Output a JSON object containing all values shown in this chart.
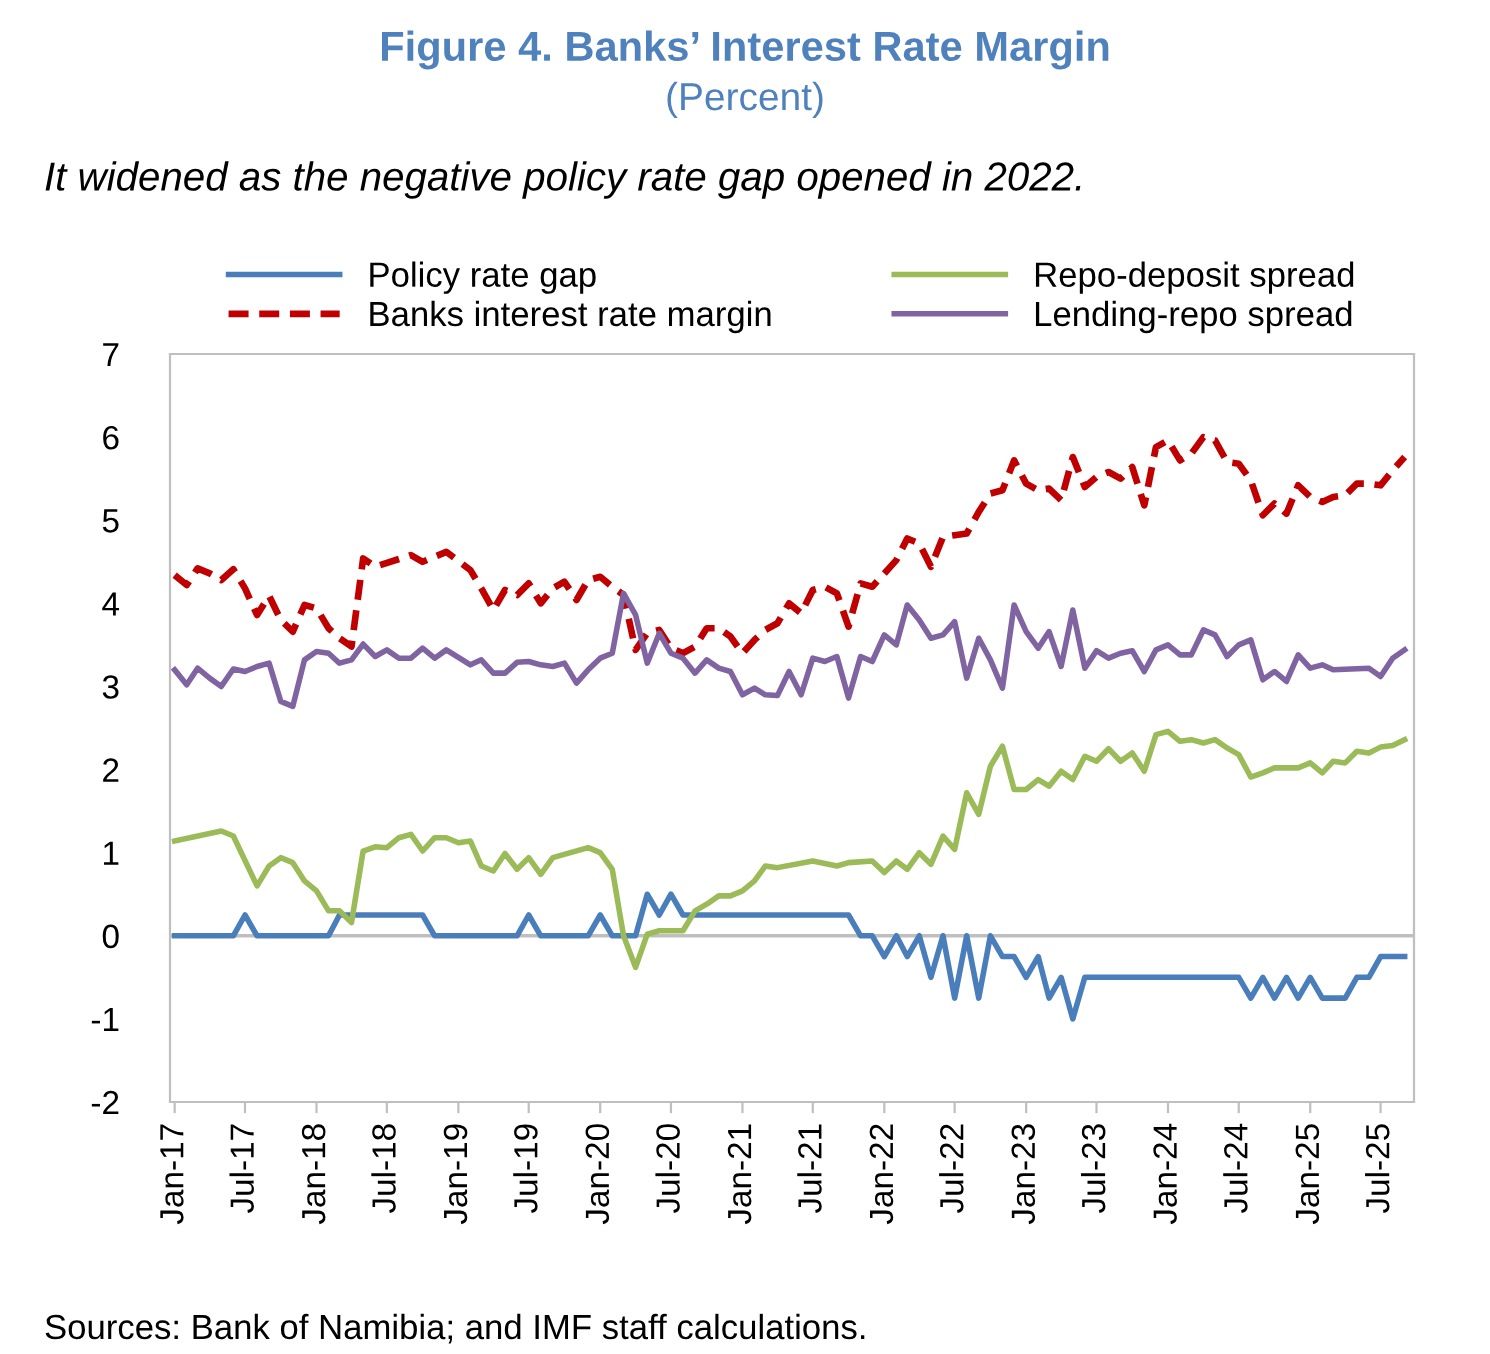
{
  "chart_data": {
    "type": "line",
    "title": "Figure 4. Banks’ Interest Rate Margin",
    "subtitle": "(Percent)",
    "annotations": [
      "It widened as the negative policy rate gap opened in 2022.",
      "Sources: Bank of Namibia; and IMF staff calculations."
    ],
    "series": [
      {
        "name": "Policy rate gap",
        "color": "#4a7ebb",
        "line_style": "solid",
        "x": [
          "2017-01",
          "2017-06",
          "2017-07",
          "2017-08",
          "2018-02",
          "2018-03",
          "2018-10",
          "2018-11",
          "2019-06",
          "2019-07",
          "2019-08",
          "2019-12",
          "2020-01",
          "2020-02",
          "2020-04",
          "2020-05",
          "2020-06",
          "2020-07",
          "2020-08",
          "2021-10",
          "2021-11",
          "2021-12",
          "2022-01",
          "2022-02",
          "2022-03",
          "2022-04",
          "2022-05",
          "2022-06",
          "2022-07",
          "2022-08",
          "2022-09",
          "2022-10",
          "2022-11",
          "2022-12",
          "2023-01",
          "2023-02",
          "2023-03",
          "2023-04",
          "2023-05",
          "2023-06",
          "2024-07",
          "2024-08",
          "2024-09",
          "2024-10",
          "2024-11",
          "2024-12",
          "2025-01",
          "2025-02",
          "2025-04",
          "2025-05",
          "2025-06",
          "2025-07",
          "2025-09"
        ],
        "values": [
          0,
          0,
          0.25,
          0,
          0,
          0.25,
          0.25,
          0,
          0,
          0.25,
          0,
          0,
          0.25,
          0,
          0,
          0.5,
          0.25,
          0.5,
          0.25,
          0.25,
          0,
          0,
          -0.25,
          0,
          -0.25,
          0,
          -0.5,
          0,
          -0.75,
          0,
          -0.75,
          0,
          -0.25,
          -0.25,
          -0.5,
          -0.25,
          -0.75,
          -0.5,
          -1,
          -0.5,
          -0.5,
          -0.75,
          -0.5,
          -0.75,
          -0.5,
          -0.75,
          -0.5,
          -0.75,
          -0.75,
          -0.5,
          -0.5,
          -0.25,
          -0.25
        ]
      },
      {
        "name": "Banks interest rate margin",
        "color": "#c00000",
        "line_style": "dashed",
        "x": [
          "2017-01",
          "2017-02",
          "2017-03",
          "2017-04",
          "2017-05",
          "2017-06",
          "2017-07",
          "2017-08",
          "2017-09",
          "2017-10",
          "2017-11",
          "2017-12",
          "2018-01",
          "2018-02",
          "2018-03",
          "2018-04",
          "2018-05",
          "2018-06",
          "2018-09",
          "2018-10",
          "2018-12",
          "2019-02",
          "2019-03",
          "2019-04",
          "2019-05",
          "2019-06",
          "2019-07",
          "2019-08",
          "2019-09",
          "2019-10",
          "2019-11",
          "2019-12",
          "2020-01",
          "2020-02",
          "2020-03",
          "2020-04",
          "2020-05",
          "2020-06",
          "2020-07",
          "2020-08",
          "2020-09",
          "2020-10",
          "2020-11",
          "2020-12",
          "2021-01",
          "2021-02",
          "2021-03",
          "2021-04",
          "2021-05",
          "2021-06",
          "2021-07",
          "2021-08",
          "2021-09",
          "2021-10",
          "2021-11",
          "2021-12",
          "2022-01",
          "2022-02",
          "2022-03",
          "2022-04",
          "2022-05",
          "2022-06",
          "2022-07",
          "2022-08",
          "2022-09",
          "2022-10",
          "2022-11",
          "2022-12",
          "2023-01",
          "2023-02",
          "2023-03",
          "2023-04",
          "2023-05",
          "2023-06",
          "2023-07",
          "2023-08",
          "2023-09",
          "2023-10",
          "2023-11",
          "2023-12",
          "2024-01",
          "2024-02",
          "2024-03",
          "2024-04",
          "2024-05",
          "2024-06",
          "2024-07",
          "2024-08",
          "2024-09",
          "2024-10",
          "2024-11",
          "2024-12",
          "2025-01",
          "2025-02",
          "2025-03",
          "2025-04",
          "2025-05",
          "2025-06",
          "2025-07",
          "2025-08",
          "2025-09"
        ],
        "values": [
          4.34,
          4.22,
          4.42,
          4.36,
          4.28,
          4.41,
          4.18,
          3.86,
          4.09,
          3.8,
          3.66,
          3.98,
          3.94,
          3.7,
          3.58,
          3.48,
          4.54,
          4.44,
          4.58,
          4.5,
          4.62,
          4.4,
          4.18,
          3.92,
          4.16,
          4.1,
          4.24,
          4.0,
          4.18,
          4.26,
          4.04,
          4.28,
          4.32,
          4.2,
          4.1,
          3.44,
          3.64,
          3.68,
          3.46,
          3.4,
          3.48,
          3.7,
          3.7,
          3.6,
          3.4,
          3.56,
          3.68,
          3.76,
          4.0,
          3.88,
          4.16,
          4.2,
          4.12,
          3.72,
          4.24,
          4.2,
          4.36,
          4.52,
          4.78,
          4.72,
          4.44,
          4.8,
          4.82,
          4.84,
          5.1,
          5.32,
          5.36,
          5.72,
          5.44,
          5.36,
          5.38,
          5.24,
          5.76,
          5.4,
          5.52,
          5.58,
          5.5,
          5.64,
          5.18,
          5.88,
          5.96,
          5.72,
          5.8,
          6.0,
          5.96,
          5.7,
          5.68,
          5.48,
          5.06,
          5.2,
          5.08,
          5.42,
          5.28,
          5.22,
          5.28,
          5.3,
          5.44,
          5.44,
          5.42,
          5.6,
          5.76
        ]
      },
      {
        "name": "Repo-deposit spread",
        "color": "#9bbb59",
        "line_style": "solid",
        "x": [
          "2017-01",
          "2017-05",
          "2017-06",
          "2017-08",
          "2017-09",
          "2017-10",
          "2017-11",
          "2017-12",
          "2018-01",
          "2018-02",
          "2018-03",
          "2018-04",
          "2018-05",
          "2018-06",
          "2018-07",
          "2018-08",
          "2018-09",
          "2018-10",
          "2018-11",
          "2018-12",
          "2019-01",
          "2019-02",
          "2019-03",
          "2019-04",
          "2019-05",
          "2019-06",
          "2019-07",
          "2019-08",
          "2019-09",
          "2019-12",
          "2020-01",
          "2020-02",
          "2020-03",
          "2020-04",
          "2020-05",
          "2020-06",
          "2020-08",
          "2020-09",
          "2020-10",
          "2020-11",
          "2020-12",
          "2021-01",
          "2021-02",
          "2021-03",
          "2021-04",
          "2021-07",
          "2021-09",
          "2021-10",
          "2021-12",
          "2022-01",
          "2022-02",
          "2022-03",
          "2022-04",
          "2022-05",
          "2022-06",
          "2022-07",
          "2022-08",
          "2022-09",
          "2022-10",
          "2022-11",
          "2022-12",
          "2023-01",
          "2023-02",
          "2023-03",
          "2023-04",
          "2023-05",
          "2023-06",
          "2023-07",
          "2023-08",
          "2023-09",
          "2023-10",
          "2023-11",
          "2023-12",
          "2024-01",
          "2024-02",
          "2024-03",
          "2024-04",
          "2024-05",
          "2024-06",
          "2024-07",
          "2024-08",
          "2024-09",
          "2024-10",
          "2024-12",
          "2025-01",
          "2025-02",
          "2025-03",
          "2025-04",
          "2025-05",
          "2025-06",
          "2025-07",
          "2025-08",
          "2025-09"
        ],
        "values": [
          1.14,
          1.26,
          1.2,
          0.6,
          0.84,
          0.94,
          0.88,
          0.66,
          0.54,
          0.3,
          0.3,
          0.16,
          1.02,
          1.07,
          1.06,
          1.18,
          1.22,
          1.02,
          1.18,
          1.18,
          1.12,
          1.14,
          0.84,
          0.78,
          0.99,
          0.8,
          0.94,
          0.74,
          0.94,
          1.06,
          1.0,
          0.8,
          0,
          -0.38,
          0.02,
          0.06,
          0.06,
          0.3,
          0.38,
          0.48,
          0.48,
          0.54,
          0.66,
          0.84,
          0.82,
          0.9,
          0.84,
          0.88,
          0.9,
          0.76,
          0.9,
          0.8,
          1.0,
          0.86,
          1.2,
          1.04,
          1.72,
          1.46,
          2.04,
          2.28,
          1.76,
          1.76,
          1.88,
          1.8,
          1.98,
          1.88,
          2.16,
          2.1,
          2.25,
          2.1,
          2.2,
          1.98,
          2.42,
          2.46,
          2.34,
          2.36,
          2.32,
          2.36,
          2.26,
          2.18,
          1.91,
          1.96,
          2.02,
          2.02,
          2.08,
          1.96,
          2.1,
          2.08,
          2.22,
          2.2,
          2.27,
          2.29,
          2.36
        ]
      },
      {
        "name": "Lending-repo spread",
        "color": "#8064a2",
        "line_style": "solid",
        "x": [
          "2017-01",
          "2017-02",
          "2017-03",
          "2017-04",
          "2017-05",
          "2017-06",
          "2017-07",
          "2017-08",
          "2017-09",
          "2017-10",
          "2017-11",
          "2017-12",
          "2018-01",
          "2018-02",
          "2018-03",
          "2018-04",
          "2018-05",
          "2018-06",
          "2018-07",
          "2018-08",
          "2018-09",
          "2018-10",
          "2018-11",
          "2018-12",
          "2019-01",
          "2019-02",
          "2019-03",
          "2019-04",
          "2019-05",
          "2019-06",
          "2019-07",
          "2019-08",
          "2019-09",
          "2019-10",
          "2019-11",
          "2019-12",
          "2020-01",
          "2020-02",
          "2020-03",
          "2020-04",
          "2020-05",
          "2020-06",
          "2020-07",
          "2020-08",
          "2020-09",
          "2020-10",
          "2020-11",
          "2020-12",
          "2021-01",
          "2021-02",
          "2021-03",
          "2021-04",
          "2021-05",
          "2021-06",
          "2021-07",
          "2021-08",
          "2021-09",
          "2021-10",
          "2021-11",
          "2021-12",
          "2022-01",
          "2022-02",
          "2022-03",
          "2022-04",
          "2022-05",
          "2022-06",
          "2022-07",
          "2022-08",
          "2022-09",
          "2022-10",
          "2022-11",
          "2022-12",
          "2023-01",
          "2023-02",
          "2023-03",
          "2023-04",
          "2023-05",
          "2023-06",
          "2023-07",
          "2023-08",
          "2023-09",
          "2023-10",
          "2023-11",
          "2023-12",
          "2024-01",
          "2024-02",
          "2024-03",
          "2024-04",
          "2024-05",
          "2024-06",
          "2024-07",
          "2024-08",
          "2024-09",
          "2024-10",
          "2024-11",
          "2024-12",
          "2025-01",
          "2025-02",
          "2025-03",
          "2025-06",
          "2025-07",
          "2025-08",
          "2025-09"
        ],
        "values": [
          3.2,
          3.02,
          3.22,
          3.1,
          3.0,
          3.21,
          3.18,
          3.24,
          3.28,
          2.82,
          2.76,
          3.32,
          3.42,
          3.4,
          3.28,
          3.32,
          3.51,
          3.36,
          3.44,
          3.34,
          3.34,
          3.46,
          3.34,
          3.44,
          3.35,
          3.26,
          3.32,
          3.16,
          3.16,
          3.29,
          3.3,
          3.26,
          3.24,
          3.28,
          3.04,
          3.2,
          3.34,
          3.4,
          4.12,
          3.86,
          3.28,
          3.64,
          3.4,
          3.34,
          3.16,
          3.32,
          3.22,
          3.18,
          2.9,
          2.98,
          2.9,
          2.89,
          3.18,
          2.9,
          3.34,
          3.3,
          3.36,
          2.86,
          3.36,
          3.3,
          3.62,
          3.5,
          3.98,
          3.8,
          3.58,
          3.62,
          3.78,
          3.1,
          3.58,
          3.32,
          2.98,
          3.98,
          3.66,
          3.46,
          3.66,
          3.24,
          3.92,
          3.22,
          3.43,
          3.34,
          3.4,
          3.43,
          3.18,
          3.44,
          3.5,
          3.38,
          3.38,
          3.68,
          3.62,
          3.36,
          3.5,
          3.56,
          3.08,
          3.18,
          3.06,
          3.38,
          3.22,
          3.26,
          3.2,
          3.22,
          3.12,
          3.34,
          3.44
        ]
      }
    ],
    "xlim": [
      "2016-12-20",
      "2025-09-25"
    ],
    "xticks": [
      {
        "value": "2017-01",
        "label": "Jan-17"
      },
      {
        "value": "2017-07",
        "label": "Jul-17"
      },
      {
        "value": "2018-01",
        "label": "Jan-18"
      },
      {
        "value": "2018-07",
        "label": "Jul-18"
      },
      {
        "value": "2019-01",
        "label": "Jan-19"
      },
      {
        "value": "2019-07",
        "label": "Jul-19"
      },
      {
        "value": "2020-01",
        "label": "Jan-20"
      },
      {
        "value": "2020-07",
        "label": "Jul-20"
      },
      {
        "value": "2021-01",
        "label": "Jan-21"
      },
      {
        "value": "2021-07",
        "label": "Jul-21"
      },
      {
        "value": "2022-01",
        "label": "Jan-22"
      },
      {
        "value": "2022-07",
        "label": "Jul-22"
      },
      {
        "value": "2023-01",
        "label": "Jan-23"
      },
      {
        "value": "2023-07",
        "label": "Jul-23"
      },
      {
        "value": "2024-01",
        "label": "Jan-24"
      },
      {
        "value": "2024-07",
        "label": "Jul-24"
      },
      {
        "value": "2025-01",
        "label": "Jan-25"
      },
      {
        "value": "2025-07",
        "label": "Jul-25"
      }
    ],
    "ylim": [
      -2,
      7
    ],
    "yticks": [
      -2,
      -1,
      0,
      1,
      2,
      3,
      4,
      5,
      6,
      7
    ],
    "ref_lines": [
      {
        "axis": "y",
        "value": 0,
        "color": "#bfbfbf"
      }
    ],
    "grid": false,
    "legend": "top"
  }
}
